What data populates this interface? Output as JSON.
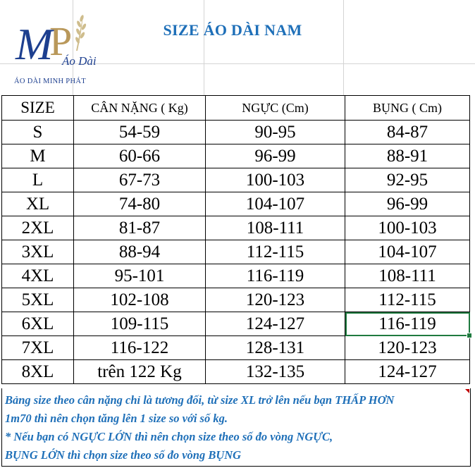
{
  "logo": {
    "monogram_m": "M",
    "monogram_p": "P",
    "script_text": "Áo Dài",
    "brand_line": "ÁO DÀI MINH PHÁT"
  },
  "title": "SIZE ÁO DÀI NAM",
  "table": {
    "headers": [
      "SIZE",
      "CÂN NẶNG ( Kg)",
      "NGỰC (Cm)",
      "BỤNG ( Cm)"
    ],
    "rows": [
      [
        "S",
        "54-59",
        "90-95",
        "84-87"
      ],
      [
        "M",
        "60-66",
        "96-99",
        "88-91"
      ],
      [
        "L",
        "67-73",
        "100-103",
        "92-95"
      ],
      [
        "XL",
        "74-80",
        "104-107",
        "96-99"
      ],
      [
        "2XL",
        "81-87",
        "108-111",
        "100-103"
      ],
      [
        "3XL",
        "88-94",
        "112-115",
        "104-107"
      ],
      [
        "4XL",
        "95-101",
        "116-119",
        "108-111"
      ],
      [
        "5XL",
        "102-108",
        "120-123",
        "112-115"
      ],
      [
        "6XL",
        "109-115",
        "124-127",
        "116-119"
      ],
      [
        "7XL",
        "116-122",
        "128-131",
        "120-123"
      ],
      [
        "8XL",
        "trên 122 Kg",
        "132-135",
        "124-127"
      ]
    ]
  },
  "notes": [
    "Bảng size theo cân nặng chỉ là tương đối, từ size XL trở lên nếu bạn THẤP HƠN",
    "1m70 thì nên chọn tăng lên 1 size so với số kg.",
    "* Nếu bạn có NGỰC LỚN thì nên chọn size theo số đo vòng NGỰC,",
    "BỤNG LỚN thì chọn size theo số đo vòng BỤNG"
  ],
  "colors": {
    "title_blue": "#1e6fb8",
    "logo_blue": "#1d3f8f",
    "logo_gold": "#b9985a",
    "selection_green": "#1f7a3f"
  }
}
